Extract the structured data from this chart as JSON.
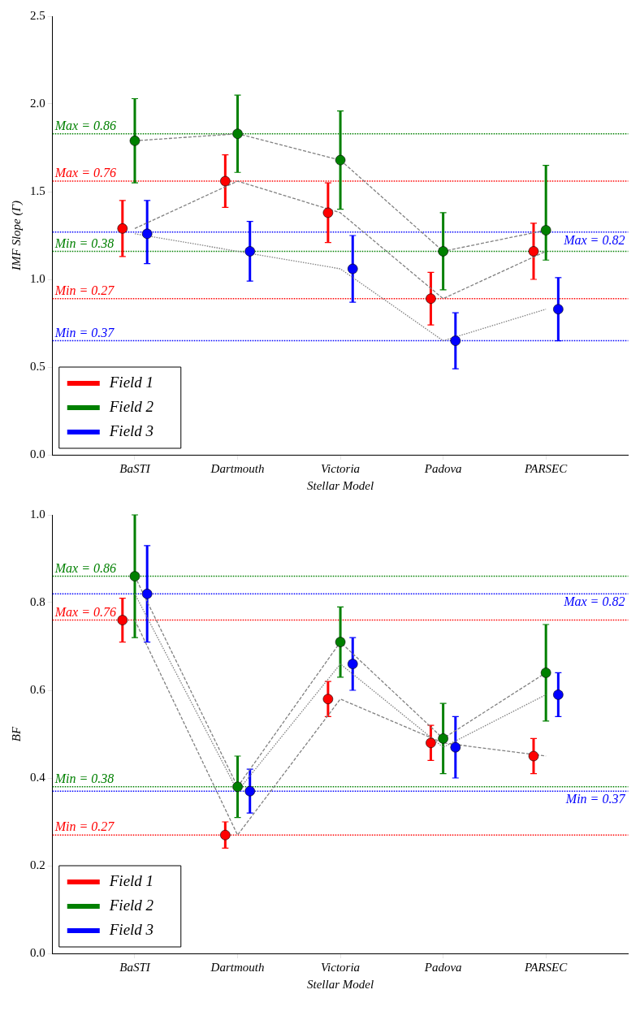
{
  "chart_data": [
    {
      "type": "scatter",
      "xlabel": "Stellar Model",
      "ylabel": "IMF Slope (Γ)",
      "categories": [
        "BaSTI",
        "Dartmouth",
        "Victoria",
        "Padova",
        "PARSEC"
      ],
      "ylim": [
        0,
        2.5
      ],
      "yticks": [
        {
          "value": 0,
          "label": "0.0"
        },
        {
          "value": 0.5,
          "label": "0.5"
        },
        {
          "value": 1,
          "label": "1.0"
        },
        {
          "value": 1.5,
          "label": "1.5"
        },
        {
          "value": 2,
          "label": "2.0"
        },
        {
          "value": 2.5,
          "label": "2.5"
        }
      ],
      "legend": "bottom left",
      "marker": "circle",
      "grid": false,
      "series": [
        {
          "name": "Field 1",
          "color": "#ff0000",
          "values": [
            1.29,
            1.56,
            1.38,
            0.89,
            1.16
          ],
          "errors": [
            [
              1.13,
              1.45
            ],
            [
              1.41,
              1.71
            ],
            [
              1.21,
              1.55
            ],
            [
              0.74,
              1.04
            ],
            [
              1.0,
              1.32
            ]
          ]
        },
        {
          "name": "Field 2",
          "color": "#008000",
          "values": [
            1.79,
            1.83,
            1.68,
            1.16,
            1.28
          ],
          "errors": [
            [
              1.55,
              2.03
            ],
            [
              1.61,
              2.05
            ],
            [
              1.4,
              1.96
            ],
            [
              0.94,
              1.38
            ],
            [
              1.11,
              1.65
            ]
          ]
        },
        {
          "name": "Field 3",
          "color": "#0000ff",
          "values": [
            1.26,
            1.16,
            1.06,
            0.65,
            0.83
          ],
          "errors": [
            [
              1.09,
              1.45
            ],
            [
              0.99,
              1.33
            ],
            [
              0.87,
              1.25
            ],
            [
              0.49,
              0.81
            ],
            [
              0.65,
              1.01
            ]
          ]
        },
        {
          "type": "line",
          "color": "#808080",
          "line_style": "dashed",
          "marker": "none",
          "values": [
            1.29,
            1.56,
            1.38,
            0.89,
            1.16
          ]
        },
        {
          "type": "line",
          "color": "#808080",
          "line_style": "dashed",
          "marker": "none",
          "values": [
            1.79,
            1.83,
            1.68,
            1.16,
            1.28
          ]
        },
        {
          "type": "line",
          "color": "#808080",
          "line_style": "dotted",
          "marker": "none",
          "values": [
            1.26,
            1.16,
            1.06,
            0.65,
            0.83
          ]
        }
      ],
      "ref_lines": [
        {
          "axis": "y",
          "value": 1.83,
          "color": "#008000",
          "line_style": "dotted"
        },
        {
          "axis": "y",
          "value": 1.56,
          "color": "#ff0000",
          "line_style": "dotted"
        },
        {
          "axis": "y",
          "value": 1.16,
          "color": "#008000",
          "line_style": "dotted"
        },
        {
          "axis": "y",
          "value": 0.89,
          "color": "#ff0000",
          "line_style": "dotted"
        },
        {
          "axis": "y",
          "value": 1.27,
          "color": "#0000ff",
          "line_style": "dotted"
        },
        {
          "axis": "y",
          "value": 0.65,
          "color": "#0000ff",
          "line_style": "dotted"
        }
      ],
      "annotations": [
        {
          "text": "Max = 0.86",
          "y": 1.83
        },
        {
          "text": "Max = 0.76",
          "y": 1.56
        },
        {
          "text": "Min = 0.38",
          "y": 1.16
        },
        {
          "text": "Min = 0.27",
          "y": 0.89
        },
        {
          "text": "Max = 0.82",
          "y": 1.27
        },
        {
          "text": "Min = 0.37",
          "y": 0.65
        }
      ]
    },
    {
      "type": "scatter",
      "xlabel": "Stellar Model",
      "ylabel": "BF",
      "categories": [
        "BaSTI",
        "Dartmouth",
        "Victoria",
        "Padova",
        "PARSEC"
      ],
      "ylim": [
        0,
        1
      ],
      "yticks": [
        {
          "value": 0,
          "label": "0.0"
        },
        {
          "value": 0.2,
          "label": "0.2"
        },
        {
          "value": 0.4,
          "label": "0.4"
        },
        {
          "value": 0.6,
          "label": "0.6"
        },
        {
          "value": 0.8,
          "label": "0.8"
        },
        {
          "value": 1,
          "label": "1.0"
        }
      ],
      "legend": "bottom left",
      "marker": "circle",
      "grid": false,
      "series": [
        {
          "name": "Field 1",
          "color": "#ff0000",
          "values": [
            0.76,
            0.27,
            0.58,
            0.48,
            0.45
          ],
          "errors": [
            [
              0.71,
              0.81
            ],
            [
              0.24,
              0.3
            ],
            [
              0.54,
              0.62
            ],
            [
              0.44,
              0.52
            ],
            [
              0.41,
              0.49
            ]
          ]
        },
        {
          "name": "Field 2",
          "color": "#008000",
          "values": [
            0.86,
            0.38,
            0.71,
            0.49,
            0.64
          ],
          "errors": [
            [
              0.72,
              1.0
            ],
            [
              0.31,
              0.45
            ],
            [
              0.63,
              0.79
            ],
            [
              0.41,
              0.57
            ],
            [
              0.53,
              0.75
            ]
          ]
        },
        {
          "name": "Field 3",
          "color": "#0000ff",
          "values": [
            0.82,
            0.37,
            0.66,
            0.47,
            0.59
          ],
          "errors": [
            [
              0.71,
              0.93
            ],
            [
              0.32,
              0.42
            ],
            [
              0.6,
              0.72
            ],
            [
              0.4,
              0.54
            ],
            [
              0.54,
              0.64
            ]
          ]
        },
        {
          "type": "line",
          "color": "#808080",
          "line_style": "dashed",
          "marker": "none",
          "values": [
            0.76,
            0.27,
            0.58,
            0.48,
            0.45
          ]
        },
        {
          "type": "line",
          "color": "#808080",
          "line_style": "dashed",
          "marker": "none",
          "values": [
            0.86,
            0.38,
            0.71,
            0.49,
            0.64
          ]
        },
        {
          "type": "line",
          "color": "#808080",
          "line_style": "dotted",
          "marker": "none",
          "values": [
            0.82,
            0.37,
            0.66,
            0.47,
            0.59
          ]
        }
      ],
      "ref_lines": [
        {
          "axis": "y",
          "value": 0.86,
          "label": "Max = 0.86",
          "color": "#008000",
          "line_style": "dotted"
        },
        {
          "axis": "y",
          "value": 0.76,
          "label": "Max = 0.76",
          "color": "#ff0000",
          "line_style": "dotted"
        },
        {
          "axis": "y",
          "value": 0.38,
          "label": "Min = 0.38",
          "color": "#008000",
          "line_style": "dotted"
        },
        {
          "axis": "y",
          "value": 0.27,
          "label": "Min = 0.27",
          "color": "#ff0000",
          "line_style": "dotted"
        },
        {
          "axis": "y",
          "value": 0.82,
          "label": "Max = 0.82",
          "color": "#0000ff",
          "line_style": "dotted"
        },
        {
          "axis": "y",
          "value": 0.37,
          "label": "Min = 0.37",
          "color": "#0000ff",
          "line_style": "dotted"
        }
      ]
    }
  ]
}
